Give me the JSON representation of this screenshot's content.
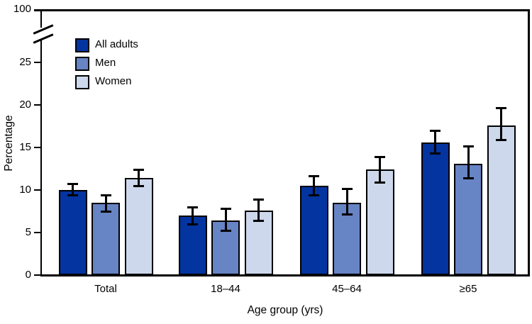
{
  "chart": {
    "y_axis_top_label": "100",
    "y_ticks": [
      0,
      5,
      10,
      15,
      20,
      25
    ]
  },
  "chart_data": {
    "type": "bar",
    "categories": [
      "Total",
      "18–44",
      "45–64",
      "≥65"
    ],
    "series": [
      {
        "name": "All adults",
        "color": "#0334a0",
        "values": [
          10.0,
          7.0,
          10.5,
          15.6
        ],
        "ci_low": [
          9.4,
          6.0,
          9.4,
          14.3
        ],
        "ci_high": [
          10.7,
          8.0,
          11.6,
          17.0
        ]
      },
      {
        "name": "Men",
        "color": "#6784c4",
        "values": [
          8.5,
          6.4,
          8.5,
          13.1
        ],
        "ci_low": [
          7.5,
          5.2,
          7.1,
          11.4
        ],
        "ci_high": [
          9.4,
          7.8,
          10.1,
          15.1
        ]
      },
      {
        "name": "Women",
        "color": "#ced8ec",
        "values": [
          11.4,
          7.6,
          12.4,
          17.6
        ],
        "ci_low": [
          10.5,
          6.4,
          10.9,
          15.9
        ],
        "ci_high": [
          12.4,
          8.9,
          13.9,
          19.6
        ]
      }
    ],
    "xlabel": "Age group (yrs)",
    "ylabel": "Percentage",
    "error_bars": true,
    "grid": false,
    "legend_position": "upper-left",
    "y_axis": {
      "break": true,
      "lower_segment_range": [
        0,
        27
      ],
      "top_value": 100
    }
  }
}
